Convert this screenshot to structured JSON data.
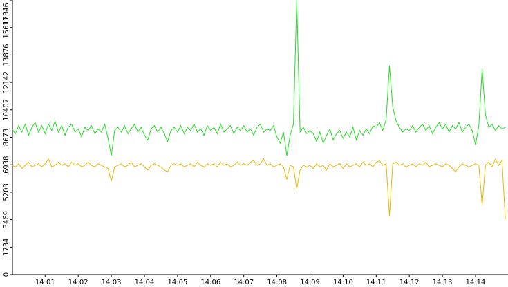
{
  "chart_data": {
    "type": "line",
    "categories": [
      null,
      null,
      null,
      null,
      null,
      null,
      null,
      null,
      null,
      null,
      "14:01",
      null,
      null,
      null,
      null,
      null,
      null,
      null,
      null,
      null,
      "14:02",
      null,
      null,
      null,
      null,
      null,
      null,
      null,
      null,
      null,
      "14:03",
      null,
      null,
      null,
      null,
      null,
      null,
      null,
      null,
      null,
      "14:04",
      null,
      null,
      null,
      null,
      null,
      null,
      null,
      null,
      null,
      "14:05",
      null,
      null,
      null,
      null,
      null,
      null,
      null,
      null,
      null,
      "14:06",
      null,
      null,
      null,
      null,
      null,
      null,
      null,
      null,
      null,
      "14:07",
      null,
      null,
      null,
      null,
      null,
      null,
      null,
      null,
      null,
      "14:08",
      null,
      null,
      null,
      null,
      null,
      null,
      null,
      null,
      null,
      "14:09",
      null,
      null,
      null,
      null,
      null,
      null,
      null,
      null,
      null,
      "14:10",
      null,
      null,
      null,
      null,
      null,
      null,
      null,
      null,
      null,
      "14:11",
      null,
      null,
      null,
      null,
      null,
      null,
      null,
      null,
      null,
      "14:12",
      null,
      null,
      null,
      null,
      null,
      null,
      null,
      null,
      null,
      "14:13",
      null,
      null,
      null,
      null,
      null,
      null,
      null,
      null,
      null,
      "14:14",
      null,
      null,
      null,
      null,
      null,
      null,
      null,
      null,
      null
    ],
    "series": [
      {
        "color": "#22dd22",
        "values": [
          9200,
          8900,
          9400,
          9000,
          9500,
          8800,
          9300,
          9600,
          9000,
          9400,
          8900,
          9500,
          9100,
          9700,
          9000,
          9400,
          8800,
          9300,
          9500,
          9000,
          9200,
          8700,
          9300,
          9100,
          9400,
          8900,
          9200,
          9000,
          9500,
          8600,
          7500,
          9100,
          9300,
          9000,
          9400,
          8900,
          9200,
          9500,
          9000,
          9300,
          8800,
          8500,
          9200,
          9400,
          9000,
          9300,
          8900,
          8400,
          9100,
          9300,
          9000,
          9400,
          8900,
          9300,
          9100,
          9500,
          9000,
          9200,
          8800,
          9400,
          9100,
          9300,
          8900,
          9500,
          9000,
          9200,
          9400,
          8900,
          9300,
          9100,
          9400,
          9000,
          9200,
          8800,
          9300,
          9500,
          9000,
          9200,
          9100,
          9400,
          8700,
          8300,
          9000,
          7500,
          8800,
          9500,
          17346,
          9000,
          9300,
          8900,
          9100,
          8900,
          8400,
          9000,
          8300,
          8800,
          9200,
          8500,
          8900,
          9100,
          8600,
          9000,
          8700,
          9300,
          8500,
          9100,
          8800,
          9200,
          8900,
          9400,
          9300,
          9600,
          9100,
          9800,
          13200,
          10600,
          9700,
          9300,
          9000,
          9200,
          9100,
          9400,
          9000,
          9300,
          9500,
          9100,
          9400,
          8900,
          9300,
          9600,
          9200,
          9500,
          9000,
          9400,
          9200,
          9600,
          9000,
          9300,
          9500,
          9100,
          8200,
          9400,
          13000,
          10100,
          9300,
          9500,
          9100,
          9400,
          9200,
          9300
        ]
      },
      {
        "color": "#e8b800",
        "values": [
          6900,
          6800,
          7000,
          6700,
          6900,
          7100,
          6800,
          6900,
          7000,
          6800,
          7000,
          7300,
          6800,
          6900,
          7100,
          6900,
          7000,
          6800,
          7100,
          6900,
          7000,
          6800,
          6900,
          7100,
          6900,
          6800,
          7000,
          6900,
          6800,
          6700,
          5900,
          6800,
          6900,
          7000,
          6800,
          6900,
          7100,
          6800,
          6900,
          7000,
          6800,
          6600,
          6900,
          7000,
          6900,
          6800,
          6600,
          6500,
          6900,
          7000,
          6900,
          7000,
          6800,
          6900,
          7000,
          6800,
          7100,
          6900,
          6800,
          7000,
          6900,
          7000,
          6800,
          7100,
          6900,
          7000,
          6800,
          6900,
          7100,
          6900,
          7000,
          6900,
          7100,
          7200,
          6900,
          7000,
          7300,
          6900,
          7000,
          6800,
          6900,
          7000,
          6800,
          6000,
          6900,
          6800,
          5400,
          6600,
          6900,
          6800,
          6900,
          6700,
          7000,
          6800,
          6900,
          6600,
          7000,
          6800,
          6900,
          7000,
          6700,
          7000,
          6800,
          6900,
          7000,
          6800,
          7100,
          6900,
          7000,
          6800,
          7100,
          7200,
          6900,
          7000,
          3700,
          7000,
          7100,
          6900,
          7000,
          6800,
          6900,
          7000,
          6800,
          7000,
          6900,
          7100,
          6800,
          6900,
          7000,
          6900,
          6800,
          7000,
          6900,
          6700,
          6500,
          6800,
          7000,
          6900,
          6800,
          6900,
          7000,
          6900,
          4400,
          6900,
          7100,
          6800,
          7300,
          6900,
          7200,
          3500
        ]
      }
    ],
    "ylim": [
      0,
      17346
    ],
    "yticks": [
      0,
      1734,
      3469,
      5203,
      6938,
      8673,
      10407,
      12142,
      13876,
      15611,
      17346
    ]
  }
}
